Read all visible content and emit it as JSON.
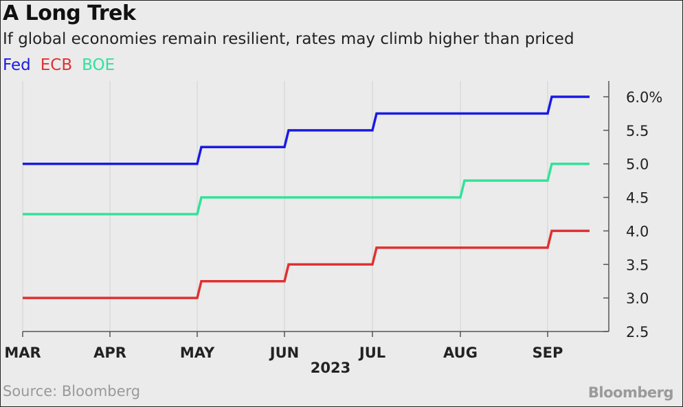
{
  "chart_data": {
    "type": "line",
    "step": true,
    "title": "A Long Trek",
    "subtitle": "If global economies remain resilient, rates may climb higher than priced",
    "x_labels": [
      "MAR",
      "APR",
      "MAY",
      "JUN",
      "JUL",
      "AUG",
      "SEP"
    ],
    "x_axis_year": "2023",
    "x_start": "MAR",
    "x_end": "mid-SEP",
    "ylim": [
      2.5,
      6.0
    ],
    "y_ticks": [
      "2.5",
      "3.0",
      "3.5",
      "4.0",
      "4.5",
      "5.0",
      "5.5",
      "6.0%"
    ],
    "y_axis_side": "right",
    "grid": "vertical at month ticks",
    "legend_placement": "top-left",
    "series": [
      {
        "name": "Fed",
        "color": "#1a1ae6",
        "points": [
          {
            "x": "MAR",
            "y": 5.0
          },
          {
            "x": "MAY",
            "y": 5.25
          },
          {
            "x": "JUN",
            "y": 5.5
          },
          {
            "x": "JUL",
            "y": 5.75
          },
          {
            "x": "SEP",
            "y": 6.0
          },
          {
            "x": "mid-SEP",
            "y": 6.0
          }
        ]
      },
      {
        "name": "ECB",
        "color": "#e03030",
        "points": [
          {
            "x": "MAR",
            "y": 3.0
          },
          {
            "x": "MAY",
            "y": 3.25
          },
          {
            "x": "JUN",
            "y": 3.5
          },
          {
            "x": "JUL",
            "y": 3.75
          },
          {
            "x": "SEP",
            "y": 4.0
          },
          {
            "x": "mid-SEP",
            "y": 4.0
          }
        ]
      },
      {
        "name": "BOE",
        "color": "#2fe39a",
        "points": [
          {
            "x": "MAR",
            "y": 4.25
          },
          {
            "x": "MAY",
            "y": 4.5
          },
          {
            "x": "AUG",
            "y": 4.75
          },
          {
            "x": "SEP",
            "y": 5.0
          },
          {
            "x": "mid-SEP",
            "y": 5.0
          }
        ]
      }
    ]
  },
  "footer": {
    "source": "Source: Bloomberg",
    "brand": "Bloomberg"
  }
}
